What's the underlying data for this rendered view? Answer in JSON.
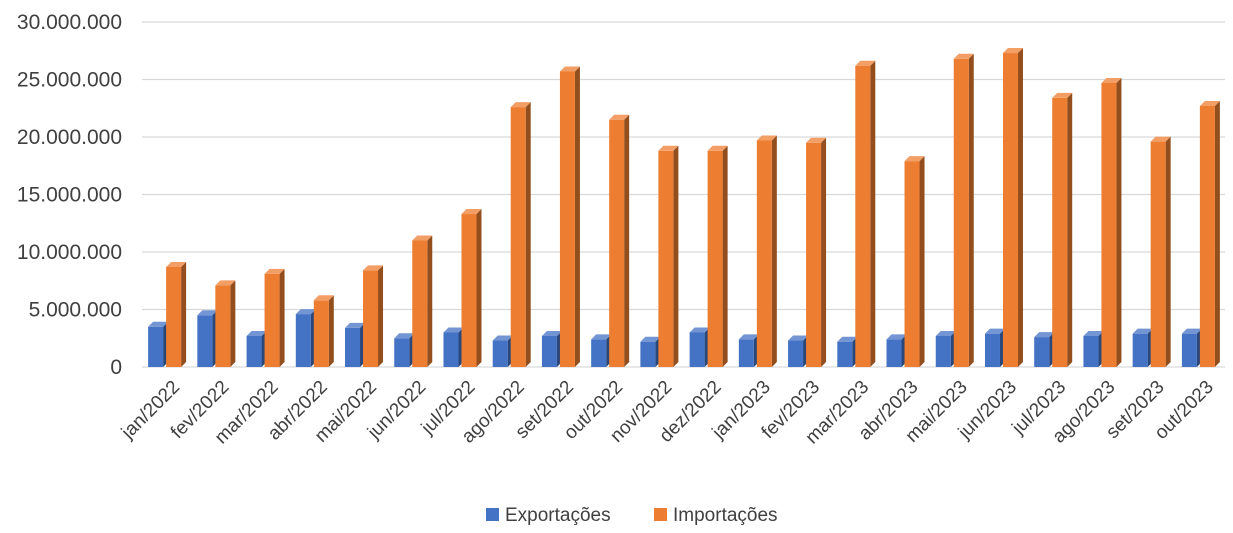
{
  "chart_data": {
    "type": "bar",
    "categories": [
      "jan/2022",
      "fev/2022",
      "mar/2022",
      "abr/2022",
      "mai/2022",
      "jun/2022",
      "jul/2022",
      "ago/2022",
      "set/2022",
      "out/2022",
      "nov/2022",
      "dez/2022",
      "jan/2023",
      "fev/2023",
      "mar/2023",
      "abr/2023",
      "mai/2023",
      "jun/2023",
      "jul/2023",
      "ago/2023",
      "set/2023",
      "out/2023"
    ],
    "series": [
      {
        "name": "Exportações",
        "color": "#4472c4",
        "values": [
          3500000,
          4500000,
          2700000,
          4600000,
          3400000,
          2500000,
          3000000,
          2300000,
          2700000,
          2400000,
          2200000,
          3000000,
          2400000,
          2300000,
          2200000,
          2400000,
          2700000,
          2900000,
          2600000,
          2700000,
          2900000,
          2900000
        ]
      },
      {
        "name": "Importações",
        "color": "#ed7d31",
        "values": [
          8700000,
          7100000,
          8100000,
          5800000,
          8400000,
          11000000,
          13300000,
          22600000,
          25700000,
          21500000,
          18800000,
          18800000,
          19700000,
          19500000,
          26200000,
          17900000,
          26800000,
          27300000,
          23400000,
          24700000,
          19600000,
          22700000
        ]
      }
    ],
    "yticks": [
      "0",
      "5.000.000",
      "10.000.000",
      "15.000.000",
      "20.000.000",
      "25.000.000",
      "30.000.000"
    ],
    "ylim": [
      0,
      30000000
    ],
    "ytick_step": 5000000,
    "grid": true,
    "legend_position": "bottom-center"
  }
}
